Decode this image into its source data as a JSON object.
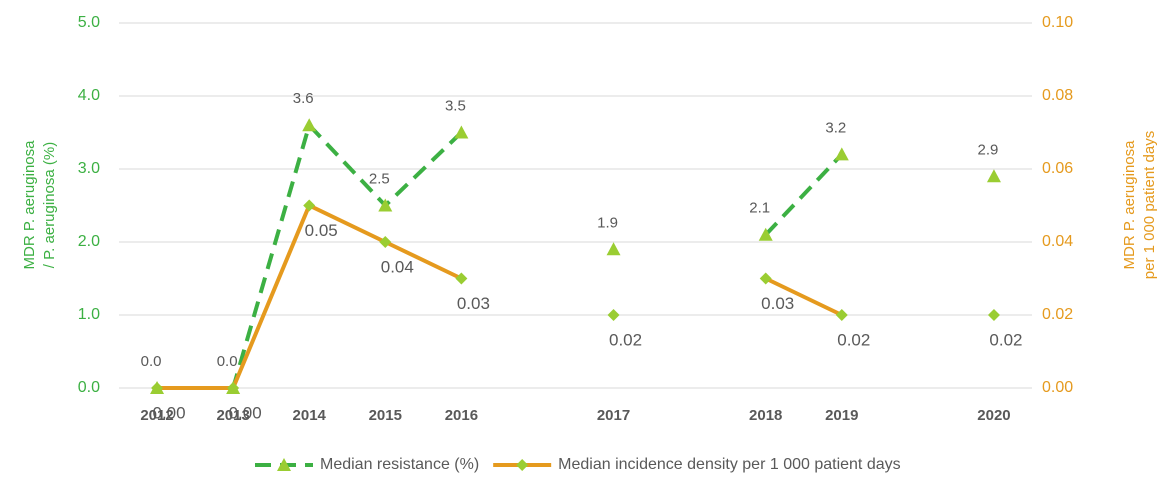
{
  "chart_data": {
    "type": "line",
    "categories": [
      "2012",
      "2013",
      "2014",
      "2015",
      "2016",
      null,
      "2017",
      null,
      "2018",
      "2019",
      null,
      "2020"
    ],
    "ylabel": [
      "MDR P. aeruginosa",
      "/ P. aeruginosa (%)"
    ],
    "y2label": [
      "MDR P. aeruginosa",
      "per 1 000 patient days"
    ],
    "ylim": [
      0,
      5
    ],
    "yticks": [
      {
        "value": 0,
        "label": "0.0"
      },
      {
        "value": 1,
        "label": "1.0"
      },
      {
        "value": 2,
        "label": "2.0"
      },
      {
        "value": 3,
        "label": "3.0"
      },
      {
        "value": 4,
        "label": "4.0"
      },
      {
        "value": 5,
        "label": "5.0"
      }
    ],
    "y2lim": [
      0,
      0.1
    ],
    "y2ticks": [
      {
        "value": 0,
        "label": "0.00"
      },
      {
        "value": 0.02,
        "label": "0.02"
      },
      {
        "value": 0.04,
        "label": "0.04"
      },
      {
        "value": 0.06,
        "label": "0.06"
      },
      {
        "value": 0.08,
        "label": "0.08"
      },
      {
        "value": 0.1,
        "label": "0.10"
      }
    ],
    "grid": true,
    "legend": "bottom",
    "series": [
      {
        "name": "Median resistance (%)",
        "color": "#3cb043",
        "marker_color": "#9acd32",
        "marker": "triangle",
        "dashed": true,
        "values": [
          0,
          0,
          3.6,
          2.5,
          3.5,
          null,
          1.9,
          null,
          2.1,
          3.2,
          null,
          2.9
        ],
        "value_labels": [
          "0.0",
          "0.0",
          "3.6",
          "2.5",
          "3.5",
          null,
          "1.9",
          null,
          "2.1",
          "3.2",
          null,
          "2.9"
        ]
      },
      {
        "name": "Median incidence density per 1 000 patient days",
        "color": "#e59a1e",
        "marker_color": "#9acd32",
        "marker": "diamond",
        "dashed": false,
        "axis": "y2",
        "values": [
          0,
          0,
          0.05,
          0.04,
          0.03,
          null,
          0.02,
          null,
          0.03,
          0.02,
          null,
          0.02
        ],
        "value_labels": [
          "0.00",
          "0.00",
          "0.05",
          "0.04",
          "0.03",
          null,
          "0.02",
          null,
          "0.03",
          "0.02",
          null,
          "0.02"
        ]
      }
    ]
  }
}
